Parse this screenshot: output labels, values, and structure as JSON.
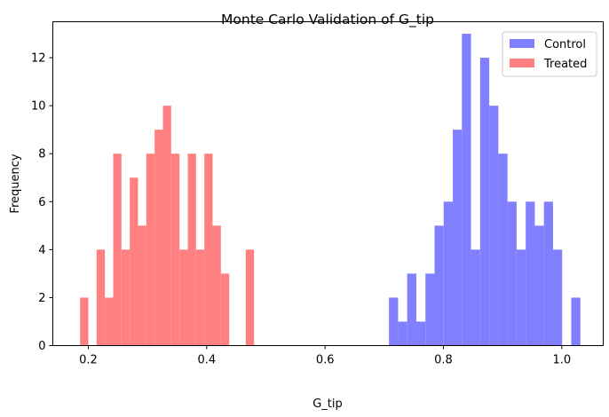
{
  "chart_data": {
    "type": "bar",
    "title": "Monte Carlo Validation of G_tip",
    "xlabel": "G_tip",
    "ylabel": "Frequency",
    "xlim": [
      0.14,
      1.07
    ],
    "ylim": [
      0,
      13.5
    ],
    "xticks": [
      "0.2",
      "0.4",
      "0.6",
      "0.8",
      "1.0"
    ],
    "yticks": [
      "0",
      "2",
      "4",
      "6",
      "8",
      "10",
      "12"
    ],
    "legend_position": "top-right",
    "grid": false,
    "series": [
      {
        "name": "Control",
        "color": "#8080ff",
        "bin_edges": [
          0.708,
          0.7234,
          0.7388,
          0.7542,
          0.7696,
          0.785,
          0.8004,
          0.8158,
          0.8312,
          0.8466,
          0.862,
          0.8774,
          0.8928,
          0.9082,
          0.9236,
          0.939,
          0.9544,
          0.9698,
          0.9852,
          1.0006,
          1.016,
          1.0314
        ],
        "counts": [
          2,
          1,
          3,
          1,
          3,
          5,
          6,
          9,
          13,
          4,
          12,
          10,
          8,
          6,
          4,
          6,
          5,
          6,
          4,
          0,
          2
        ]
      },
      {
        "name": "Treated",
        "color": "#ff8080",
        "bin_edges": [
          0.186,
          0.2,
          0.214,
          0.228,
          0.242,
          0.256,
          0.27,
          0.284,
          0.298,
          0.312,
          0.326,
          0.34,
          0.354,
          0.368,
          0.382,
          0.396,
          0.41,
          0.424,
          0.438,
          0.452,
          0.466,
          0.48
        ],
        "counts": [
          2,
          0,
          4,
          2,
          8,
          4,
          7,
          5,
          8,
          9,
          10,
          8,
          4,
          8,
          4,
          8,
          5,
          3,
          0,
          0,
          4
        ]
      }
    ]
  }
}
